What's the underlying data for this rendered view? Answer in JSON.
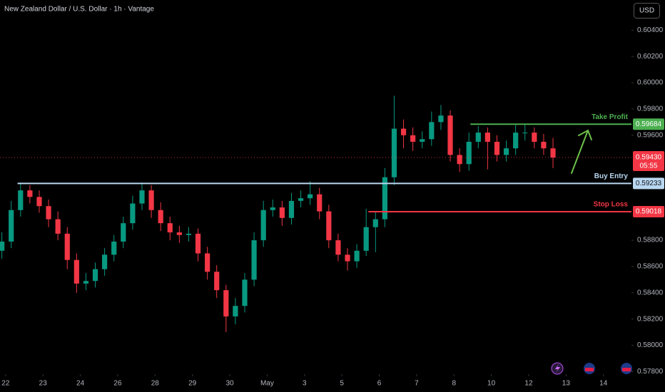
{
  "chart_data": {
    "type": "candlestick",
    "title": "New Zealand Dollar / U.S. Dollar · 1h · Vantage",
    "x": [
      -0.1,
      0.15,
      0.4,
      0.65,
      0.9,
      1.15,
      1.4,
      1.65,
      1.9,
      2.15,
      2.4,
      2.65,
      2.9,
      3.15,
      3.4,
      3.65,
      3.9,
      4.15,
      4.4,
      4.65,
      4.9,
      5.15,
      5.4,
      5.65,
      5.9,
      6.15,
      6.4,
      6.65,
      6.9,
      7.15,
      7.4,
      7.65,
      7.9,
      8.15,
      8.4,
      8.65,
      8.9,
      9.15,
      9.4,
      9.65,
      9.9,
      10.15,
      10.4,
      10.65,
      10.9,
      11.15,
      11.4,
      11.65,
      11.9,
      12.15,
      12.4,
      12.65,
      12.9,
      13.15,
      13.4,
      13.65,
      13.9,
      14.15,
      14.4,
      14.65
    ],
    "open": [
      0.5872,
      0.5879,
      0.5903,
      0.5918,
      0.5913,
      0.5906,
      0.5896,
      0.5885,
      0.5865,
      0.5847,
      0.5849,
      0.5858,
      0.5869,
      0.5879,
      0.5893,
      0.5908,
      0.5918,
      0.5903,
      0.5893,
      0.5886,
      0.5884,
      0.5885,
      0.587,
      0.5856,
      0.5842,
      0.5822,
      0.583,
      0.585,
      0.588,
      0.5903,
      0.5905,
      0.5897,
      0.591,
      0.5912,
      0.5915,
      0.5902,
      0.588,
      0.5869,
      0.5864,
      0.5872,
      0.589,
      0.5896,
      0.5928,
      0.5965,
      0.596,
      0.5955,
      0.5957,
      0.597,
      0.5975,
      0.5945,
      0.5938,
      0.5955,
      0.5962,
      0.5955,
      0.5945,
      0.595,
      0.5962,
      0.5962,
      0.5955,
      0.595
    ],
    "high": [
      0.5886,
      0.591,
      0.5924,
      0.5922,
      0.5918,
      0.5911,
      0.5902,
      0.589,
      0.587,
      0.5855,
      0.5863,
      0.5874,
      0.5884,
      0.5898,
      0.5914,
      0.5924,
      0.5922,
      0.5909,
      0.5898,
      0.5891,
      0.589,
      0.5889,
      0.5875,
      0.5861,
      0.5846,
      0.5836,
      0.5855,
      0.5886,
      0.591,
      0.5911,
      0.591,
      0.5916,
      0.5918,
      0.5925,
      0.592,
      0.5907,
      0.5885,
      0.5874,
      0.5877,
      0.5904,
      0.5902,
      0.5935,
      0.599,
      0.5972,
      0.5966,
      0.5963,
      0.5978,
      0.5983,
      0.5979,
      0.595,
      0.5962,
      0.5967,
      0.5966,
      0.596,
      0.5956,
      0.5968,
      0.5968,
      0.5966,
      0.5961,
      0.5958
    ],
    "low": [
      0.5866,
      0.5874,
      0.5898,
      0.5908,
      0.5901,
      0.589,
      0.588,
      0.5858,
      0.584,
      0.5842,
      0.5844,
      0.5853,
      0.5864,
      0.5874,
      0.5888,
      0.5903,
      0.5897,
      0.5887,
      0.588,
      0.5878,
      0.5879,
      0.5864,
      0.585,
      0.5836,
      0.581,
      0.5816,
      0.5825,
      0.5845,
      0.5875,
      0.5898,
      0.5891,
      0.5892,
      0.5905,
      0.5907,
      0.5896,
      0.5874,
      0.5864,
      0.5857,
      0.5859,
      0.5868,
      0.5871,
      0.589,
      0.5922,
      0.595,
      0.5948,
      0.595,
      0.5952,
      0.5964,
      0.594,
      0.5932,
      0.5933,
      0.595,
      0.5934,
      0.594,
      0.594,
      0.5945,
      0.5956,
      0.595,
      0.5945,
      0.5935
    ],
    "close": [
      0.5879,
      0.5903,
      0.5918,
      0.5913,
      0.5906,
      0.5896,
      0.5885,
      0.5865,
      0.5847,
      0.5849,
      0.5858,
      0.5869,
      0.5879,
      0.5893,
      0.5908,
      0.5918,
      0.5903,
      0.5893,
      0.5886,
      0.5884,
      0.5885,
      0.587,
      0.5856,
      0.5842,
      0.5822,
      0.583,
      0.585,
      0.588,
      0.5903,
      0.5905,
      0.5897,
      0.591,
      0.5912,
      0.5915,
      0.5902,
      0.588,
      0.5869,
      0.5864,
      0.5872,
      0.589,
      0.5896,
      0.5928,
      0.5965,
      0.596,
      0.5955,
      0.5957,
      0.597,
      0.5975,
      0.5945,
      0.5938,
      0.5955,
      0.5962,
      0.5955,
      0.5945,
      0.595,
      0.5962,
      0.5962,
      0.5955,
      0.595,
      0.5943
    ],
    "up_color": "#089981",
    "down_color": "#f23645",
    "xlim": [
      -0.15,
      16.75
    ],
    "ylim": [
      0.5778,
      0.6063
    ],
    "xticks": [
      {
        "value": 0,
        "label": "22"
      },
      {
        "value": 1,
        "label": "23"
      },
      {
        "value": 2,
        "label": "24"
      },
      {
        "value": 3,
        "label": "26"
      },
      {
        "value": 4,
        "label": "28"
      },
      {
        "value": 5,
        "label": "29"
      },
      {
        "value": 6,
        "label": "30"
      },
      {
        "value": 7,
        "label": "May"
      },
      {
        "value": 8,
        "label": "3"
      },
      {
        "value": 9,
        "label": "5"
      },
      {
        "value": 10,
        "label": "6"
      },
      {
        "value": 11,
        "label": "7"
      },
      {
        "value": 12,
        "label": "8"
      },
      {
        "value": 13,
        "label": "10"
      },
      {
        "value": 14,
        "label": "12"
      },
      {
        "value": 15,
        "label": "13"
      },
      {
        "value": 16,
        "label": "14"
      }
    ],
    "yticks": [
      {
        "value": 0.604,
        "label": "0.60400"
      },
      {
        "value": 0.602,
        "label": "0.60200"
      },
      {
        "value": 0.6,
        "label": "0.60000"
      },
      {
        "value": 0.598,
        "label": "0.59800"
      },
      {
        "value": 0.596,
        "label": "0.59600"
      },
      {
        "value": 0.588,
        "label": "0.58800"
      },
      {
        "value": 0.586,
        "label": "0.58600"
      },
      {
        "value": 0.584,
        "label": "0.58400"
      },
      {
        "value": 0.582,
        "label": "0.58200"
      },
      {
        "value": 0.58,
        "label": "0.58000"
      },
      {
        "value": 0.578,
        "label": "0.57800"
      }
    ],
    "levels": [
      {
        "name": "Take Profit",
        "value": 0.59684,
        "x_start": 12.44,
        "color": "#4caf50",
        "text_color": "#ffffff"
      },
      {
        "name": "Buy Entry",
        "value": 0.59233,
        "x_start": 0.32,
        "color": "#b9d7f0",
        "text_color": "#131722"
      },
      {
        "name": "Stop Loss",
        "value": 0.59018,
        "x_start": 9.71,
        "color": "#f23645",
        "text_color": "#ffffff"
      }
    ],
    "current_price": {
      "value": 0.5943,
      "label": "0.59430"
    },
    "countdown": "05:55"
  },
  "toolbar": {
    "currency": "USD"
  }
}
